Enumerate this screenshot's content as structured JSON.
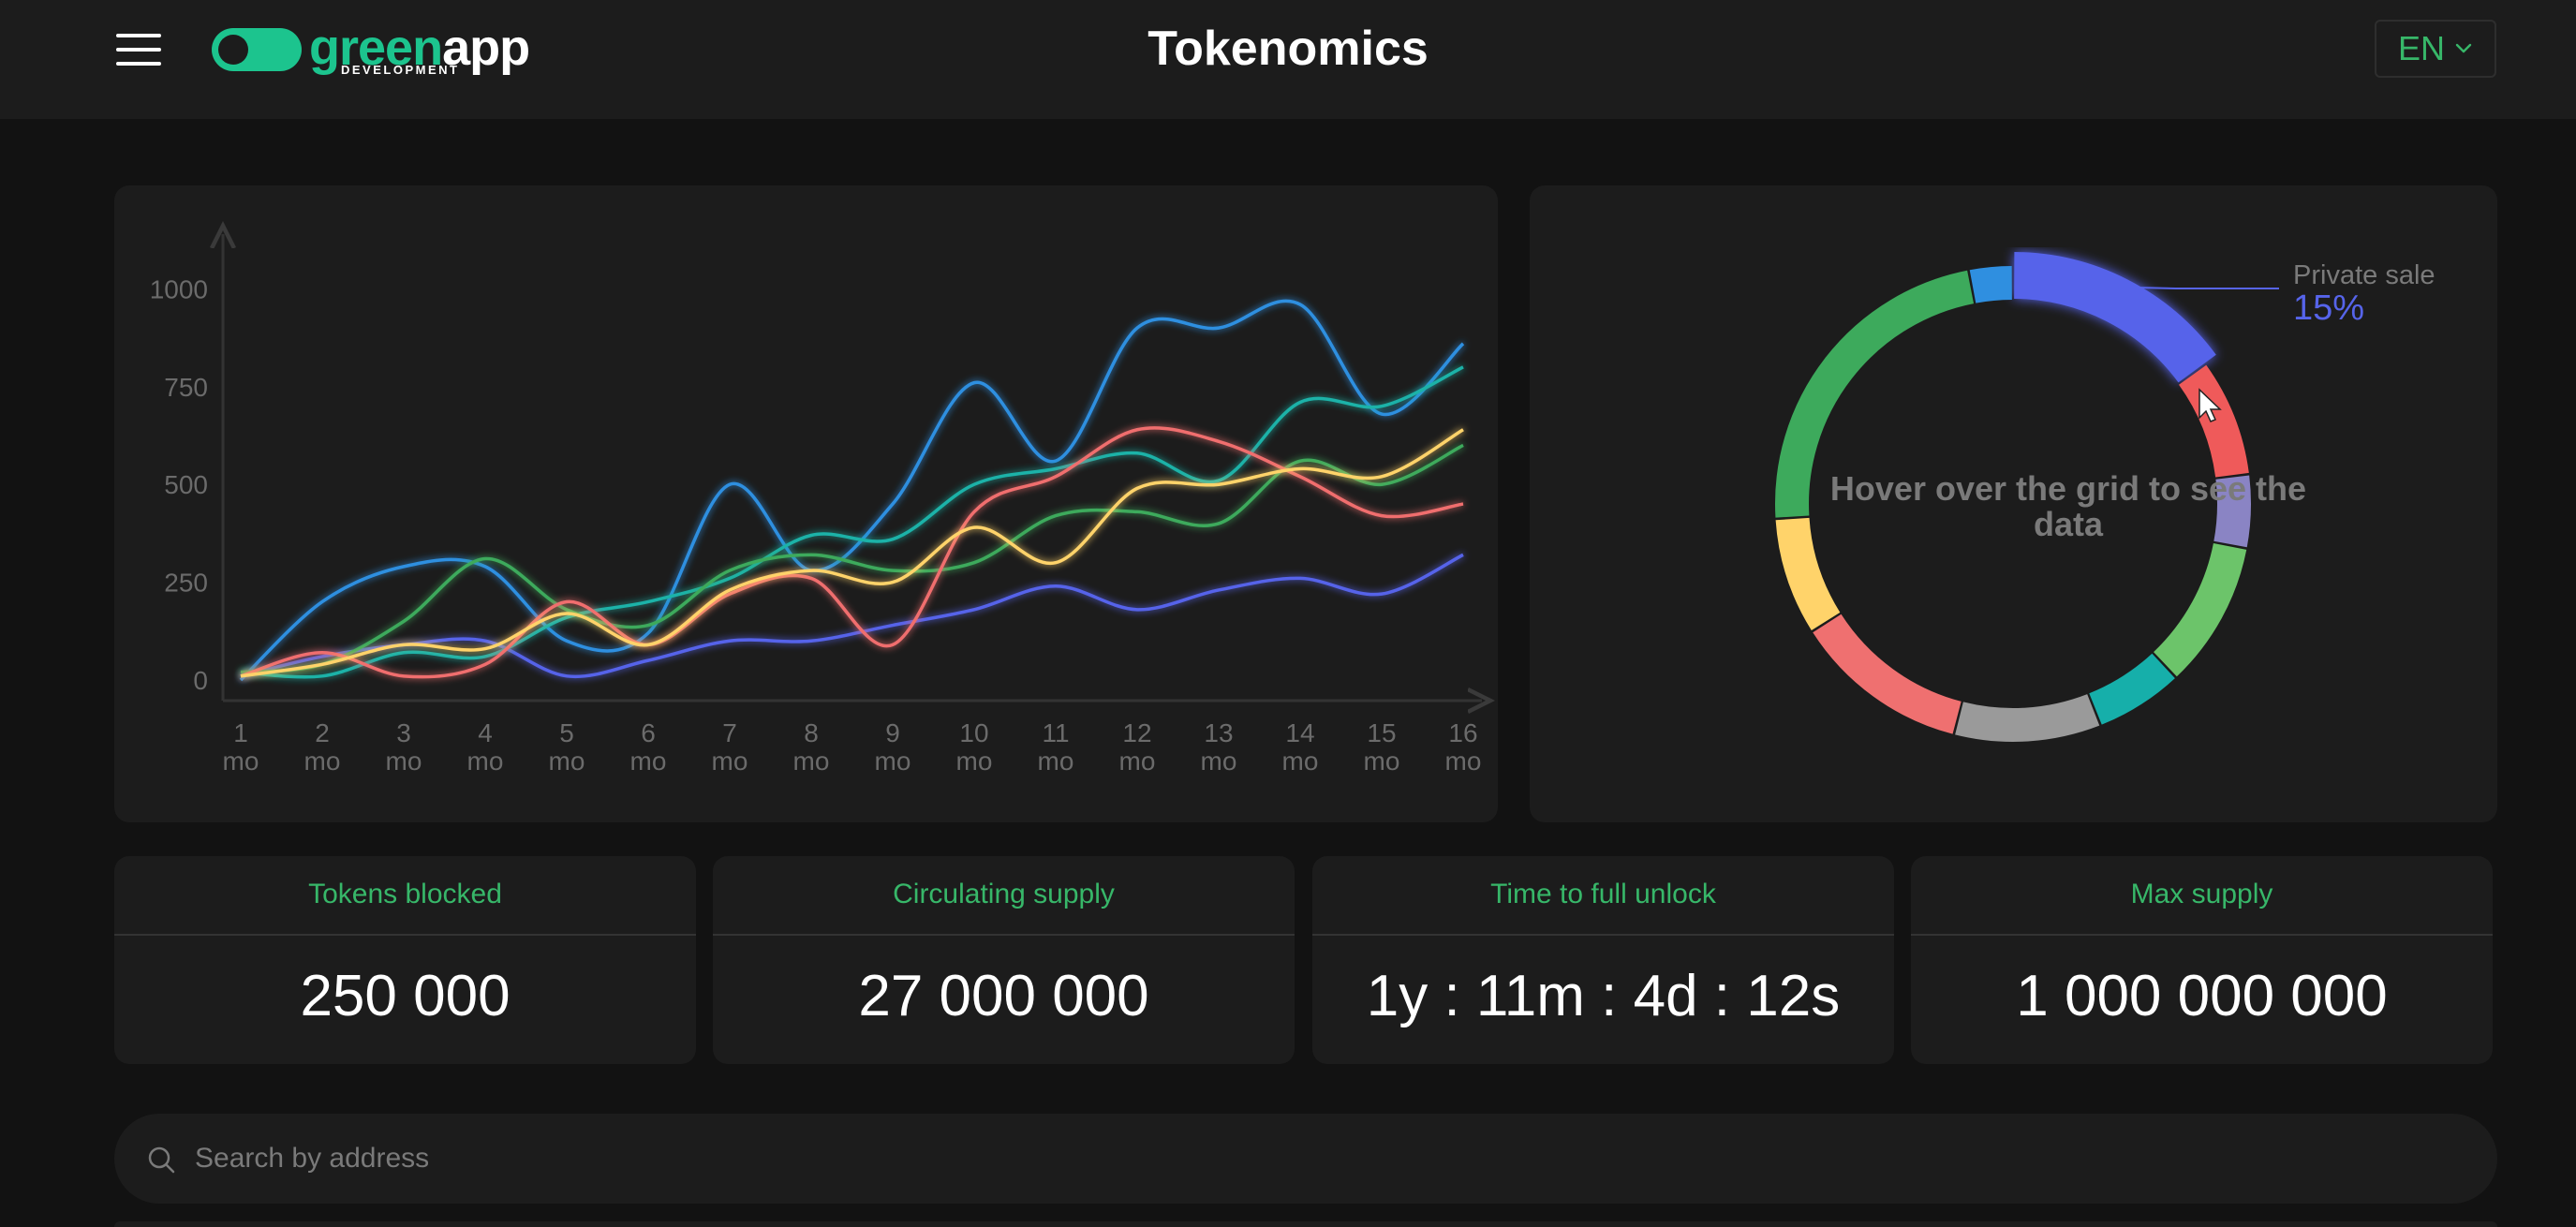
{
  "header": {
    "title": "Tokenomics",
    "logo": {
      "part1": "green",
      "part2": "app",
      "sub": "DEVELOPMENT"
    },
    "language": "EN"
  },
  "colors": {
    "accent_green": "#37b769",
    "blue": "#2f8fe0",
    "indigo": "#5664ea",
    "teal": "#1ab2a8",
    "green": "#3daa5c",
    "red": "#f06e6e",
    "yellow": "#ffd36a"
  },
  "chart_data": [
    {
      "type": "line",
      "x": [
        1,
        2,
        3,
        4,
        5,
        6,
        7,
        8,
        9,
        10,
        11,
        12,
        13,
        14,
        15,
        16
      ],
      "x_tick_labels": [
        "1",
        "2",
        "3",
        "4",
        "5",
        "6",
        "7",
        "8",
        "9",
        "10",
        "11",
        "12",
        "13",
        "14",
        "15",
        "16"
      ],
      "x_unit_label": "mo",
      "y_ticks": [
        0,
        250,
        500,
        750,
        1000
      ],
      "ylim": [
        0,
        1100
      ],
      "xlim": [
        1,
        16.5
      ],
      "grid": false,
      "series": [
        {
          "color": "#2f8fe0",
          "values": [
            0,
            200,
            290,
            290,
            100,
            120,
            500,
            280,
            450,
            760,
            560,
            900,
            900,
            960,
            680,
            860
          ]
        },
        {
          "color": "#5664ea",
          "values": [
            10,
            60,
            90,
            100,
            10,
            50,
            100,
            100,
            140,
            180,
            240,
            180,
            230,
            260,
            220,
            320
          ]
        },
        {
          "color": "#1ab2a8",
          "values": [
            20,
            10,
            70,
            60,
            160,
            200,
            260,
            370,
            360,
            500,
            540,
            580,
            510,
            710,
            700,
            800
          ]
        },
        {
          "color": "#3daa5c",
          "values": [
            20,
            40,
            150,
            310,
            180,
            140,
            280,
            320,
            280,
            300,
            420,
            430,
            400,
            560,
            500,
            600
          ]
        },
        {
          "color": "#f06e6e",
          "values": [
            10,
            70,
            10,
            40,
            200,
            90,
            220,
            260,
            90,
            430,
            520,
            640,
            610,
            520,
            420,
            450
          ]
        },
        {
          "color": "#ffd36a",
          "values": [
            10,
            40,
            90,
            80,
            170,
            90,
            230,
            280,
            250,
            390,
            300,
            490,
            500,
            540,
            520,
            640
          ]
        }
      ]
    },
    {
      "type": "pie",
      "style": "donut",
      "center_text": "Hover over the grid to see the data",
      "highlighted": {
        "label": "Private sale",
        "value": "15%"
      },
      "segments": [
        {
          "color": "#5664ea",
          "value": 15
        },
        {
          "color": "#ef5a5a",
          "value": 8
        },
        {
          "color": "#8a84c4",
          "value": 5
        },
        {
          "color": "#6cc46a",
          "value": 10
        },
        {
          "color": "#16afaa",
          "value": 6
        },
        {
          "color": "#9a9a9a",
          "value": 10
        },
        {
          "color": "#ef7070",
          "value": 12
        },
        {
          "color": "#ffd36a",
          "value": 8
        },
        {
          "color": "#3daa5c",
          "value": 23
        },
        {
          "color": "#2f8fe0",
          "value": 3
        }
      ]
    }
  ],
  "stats": [
    {
      "label": "Tokens blocked",
      "value": "250 000"
    },
    {
      "label": "Circulating supply",
      "value": "27 000 000"
    },
    {
      "label": "Time to full unlock",
      "value": "1y : 11m : 4d : 12s"
    },
    {
      "label": "Max supply",
      "value": "1 000 000 000"
    }
  ],
  "search": {
    "placeholder": "Search by address"
  },
  "icons": [
    "menu-icon",
    "chevron-down-icon",
    "search-icon",
    "cursor-icon"
  ]
}
